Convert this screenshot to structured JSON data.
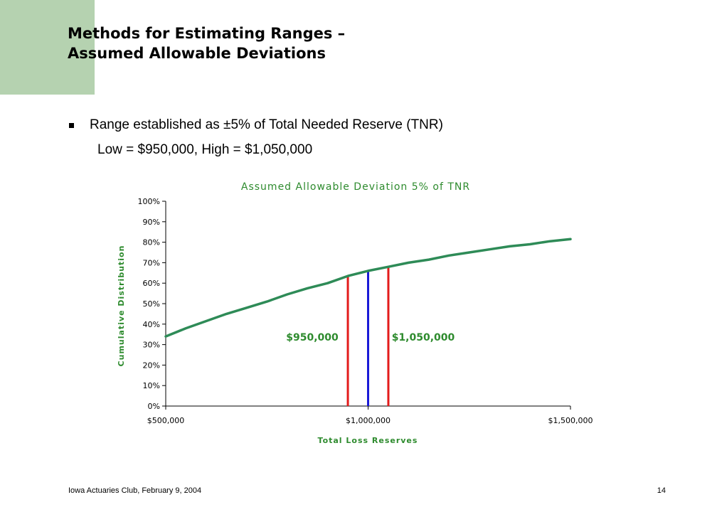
{
  "slide": {
    "title_line1": "Methods for Estimating Ranges –",
    "title_line2": "Assumed Allowable Deviations",
    "bullet": "Range established as ±5% of Total Needed Reserve (TNR)",
    "subline": "Low = $950,000,  High = $1,050,000",
    "footer_left": "Iowa Actuaries Club, February 9, 2004",
    "footer_right": "14",
    "accent_color": "#b5d2b0"
  },
  "chart_data": {
    "type": "line",
    "title": "Assumed Allowable Deviation 5% of TNR",
    "xlabel": "Total Loss Reserves",
    "ylabel": "Cumulative Distribution",
    "xlim": [
      500000,
      1500000
    ],
    "ylim": [
      0,
      1
    ],
    "x_ticks": [
      500000,
      1000000,
      1500000
    ],
    "x_tick_labels": [
      "$500,000",
      "$1,000,000",
      "$1,500,000"
    ],
    "y_ticks": [
      0,
      0.1,
      0.2,
      0.3,
      0.4,
      0.5,
      0.6,
      0.7,
      0.8,
      0.9,
      1.0
    ],
    "y_tick_labels": [
      "0%",
      "10%",
      "20%",
      "30%",
      "40%",
      "50%",
      "60%",
      "70%",
      "80%",
      "90%",
      "100%"
    ],
    "grid": false,
    "series": [
      {
        "color": "#2e8b57",
        "x": [
          500000,
          550000,
          600000,
          650000,
          700000,
          750000,
          800000,
          850000,
          900000,
          950000,
          1000000,
          1050000,
          1100000,
          1150000,
          1200000,
          1250000,
          1300000,
          1350000,
          1400000,
          1450000,
          1500000
        ],
        "y": [
          0.34,
          0.38,
          0.415,
          0.45,
          0.48,
          0.51,
          0.545,
          0.575,
          0.6,
          0.635,
          0.66,
          0.68,
          0.7,
          0.715,
          0.735,
          0.75,
          0.765,
          0.78,
          0.79,
          0.805,
          0.815
        ]
      }
    ],
    "vertical_lines": [
      {
        "x": 950000,
        "y": 0.635,
        "color": "#e31b1b",
        "label": "$950,000"
      },
      {
        "x": 1000000,
        "y": 0.66,
        "color": "#1a1ad6",
        "label": ""
      },
      {
        "x": 1050000,
        "y": 0.68,
        "color": "#e31b1b",
        "label": "$1,050,000"
      }
    ],
    "text_color": "#2e8b2e"
  }
}
